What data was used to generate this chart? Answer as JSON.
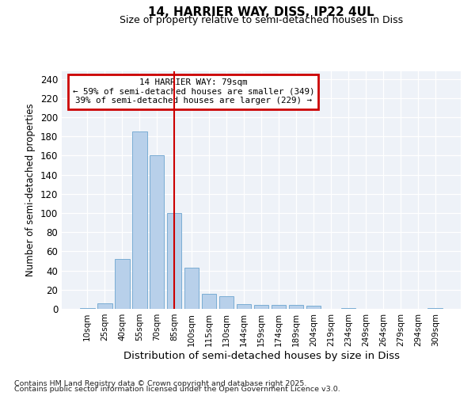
{
  "title1": "14, HARRIER WAY, DISS, IP22 4UL",
  "title2": "Size of property relative to semi-detached houses in Diss",
  "xlabel": "Distribution of semi-detached houses by size in Diss",
  "ylabel": "Number of semi-detached properties",
  "categories": [
    "10sqm",
    "25sqm",
    "40sqm",
    "55sqm",
    "70sqm",
    "85sqm",
    "100sqm",
    "115sqm",
    "130sqm",
    "144sqm",
    "159sqm",
    "174sqm",
    "189sqm",
    "204sqm",
    "219sqm",
    "234sqm",
    "249sqm",
    "264sqm",
    "279sqm",
    "294sqm",
    "309sqm"
  ],
  "values": [
    1,
    6,
    52,
    185,
    160,
    100,
    43,
    16,
    13,
    5,
    4,
    4,
    4,
    3,
    0,
    1,
    0,
    0,
    0,
    0,
    1
  ],
  "bar_color": "#b8d0ea",
  "bar_edge_color": "#7aadd4",
  "property_line_x": 5.0,
  "property_value": "79sqm",
  "property_label": "14 HARRIER WAY: 79sqm",
  "pct_smaller": 59,
  "n_smaller": 349,
  "pct_larger": 39,
  "n_larger": 229,
  "annotation_box_color": "#cc0000",
  "vline_color": "#cc0000",
  "ylim": [
    0,
    248
  ],
  "yticks": [
    0,
    20,
    40,
    60,
    80,
    100,
    120,
    140,
    160,
    180,
    200,
    220,
    240
  ],
  "bg_color": "#eef2f8",
  "footnote1": "Contains HM Land Registry data © Crown copyright and database right 2025.",
  "footnote2": "Contains public sector information licensed under the Open Government Licence v3.0."
}
